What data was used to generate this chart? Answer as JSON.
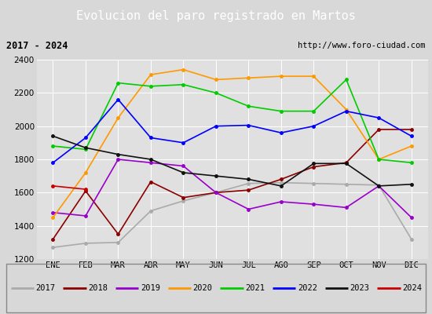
{
  "title": "Evolucion del paro registrado en Martos",
  "subtitle_left": "2017 - 2024",
  "subtitle_right": "http://www.foro-ciudad.com",
  "ylim": [
    1200,
    2400
  ],
  "months": [
    "ENE",
    "FEB",
    "MAR",
    "ABR",
    "MAY",
    "JUN",
    "JUL",
    "AGO",
    "SEP",
    "OCT",
    "NOV",
    "DIC"
  ],
  "series": {
    "2017": {
      "color": "#aaaaaa",
      "data": [
        1270,
        1295,
        1300,
        1490,
        1550,
        1600,
        1655,
        1660,
        1655,
        1650,
        1645,
        1320
      ]
    },
    "2018": {
      "color": "#8b0000",
      "data": [
        1320,
        1610,
        1350,
        1665,
        1570,
        1600,
        1615,
        1680,
        1755,
        1780,
        1980,
        1980
      ]
    },
    "2019": {
      "color": "#9900cc",
      "data": [
        1480,
        1460,
        1800,
        1780,
        1760,
        1600,
        1500,
        1545,
        1530,
        1510,
        1640,
        1450
      ]
    },
    "2020": {
      "color": "#ff9900",
      "data": [
        1450,
        1720,
        2050,
        2310,
        2340,
        2280,
        2290,
        2300,
        2300,
        2100,
        1800,
        1880
      ]
    },
    "2021": {
      "color": "#00cc00",
      "data": [
        1880,
        1860,
        2260,
        2240,
        2250,
        2200,
        2120,
        2090,
        2090,
        2280,
        1800,
        1780
      ]
    },
    "2022": {
      "color": "#0000ff",
      "data": [
        1780,
        1930,
        2160,
        1930,
        1900,
        2000,
        2005,
        1960,
        2000,
        2090,
        2050,
        1940
      ]
    },
    "2023": {
      "color": "#111111",
      "data": [
        1940,
        1870,
        1830,
        1800,
        1720,
        1700,
        1680,
        1640,
        1775,
        1775,
        1640,
        1650
      ]
    },
    "2024": {
      "color": "#cc0000",
      "data": [
        1640,
        1620,
        null,
        null,
        null,
        null,
        null,
        null,
        null,
        null,
        null,
        null
      ]
    }
  },
  "bg_color": "#d8d8d8",
  "plot_bg_color": "#e0e0e0",
  "title_bg_color": "#4472c4",
  "title_color": "#ffffff",
  "subtitle_bg_color": "#c8c8c8",
  "grid_color": "#ffffff",
  "legend_bg_color": "#f0f0f0"
}
